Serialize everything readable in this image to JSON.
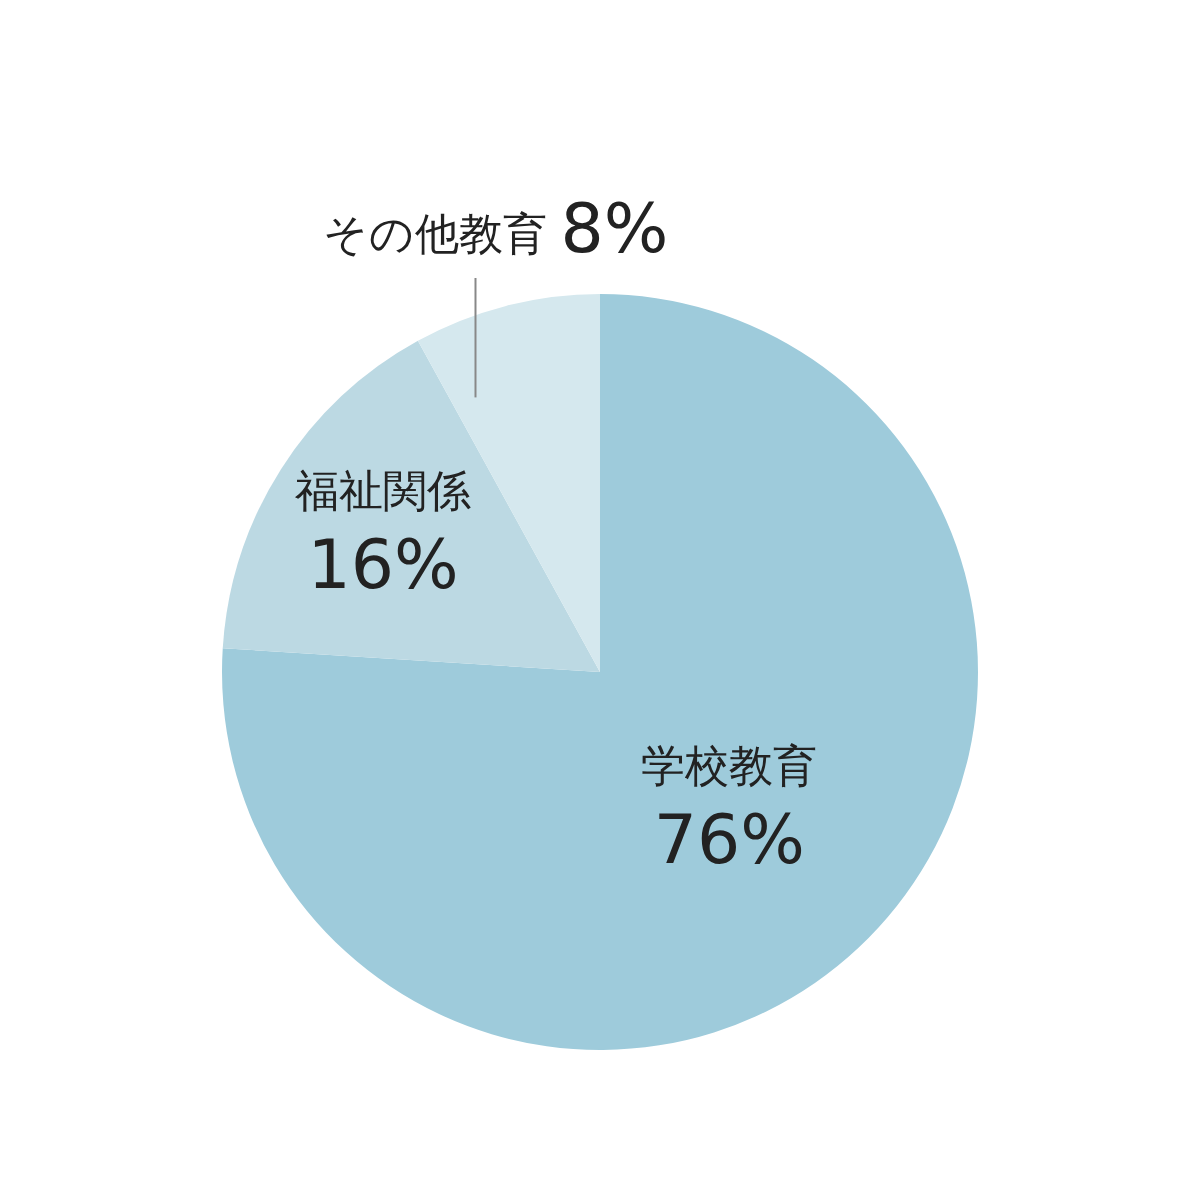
{
  "chart_data": {
    "type": "pie",
    "categories": [
      "学校教育",
      "福祉関係",
      "その他教育"
    ],
    "values": [
      76,
      16,
      8
    ],
    "colors": [
      "#9ecbdb",
      "#bcd9e3",
      "#d5e8ee"
    ],
    "value_labels": [
      "76%",
      "16%",
      "8%"
    ],
    "legend": false
  }
}
